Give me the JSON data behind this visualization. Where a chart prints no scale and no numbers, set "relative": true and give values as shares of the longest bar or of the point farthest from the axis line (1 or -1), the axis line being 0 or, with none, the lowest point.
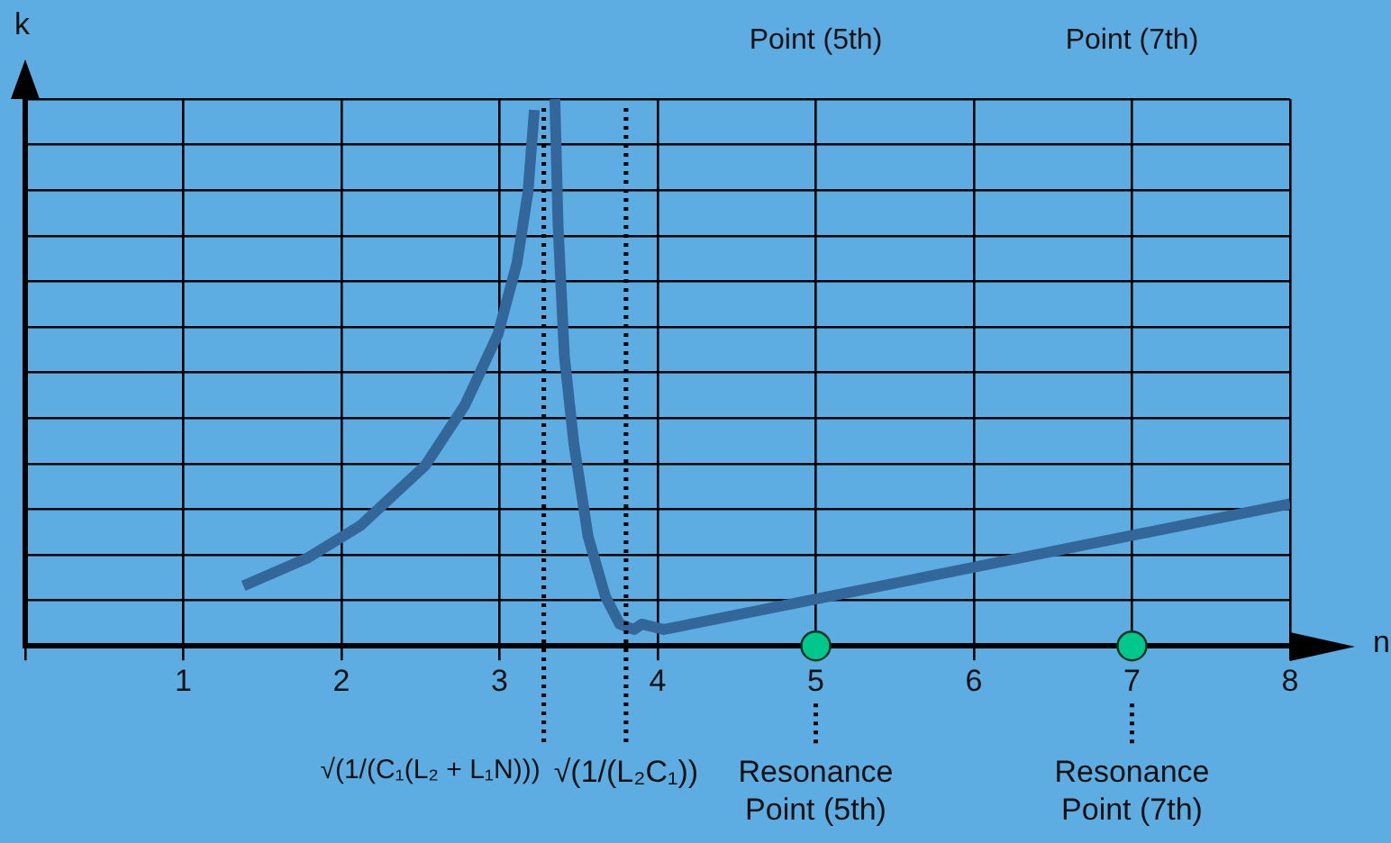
{
  "chart_data": {
    "type": "line",
    "relative": true,
    "xlabel": "n",
    "ylabel": "k",
    "xlim": [
      0,
      8
    ],
    "xticks": [
      {
        "value": 0,
        "label": null
      },
      1,
      2,
      3,
      4,
      5,
      6,
      7,
      8
    ],
    "grid": true,
    "legend": false,
    "marker": "none",
    "line_style": "solid",
    "series": [
      {
        "type": "line",
        "color": "#336699",
        "x": [
          1.38,
          1.78,
          2.12,
          2.53,
          2.78,
          2.99,
          3.11,
          3.18,
          3.22,
          3.28,
          3.35,
          3.37,
          3.41,
          3.47,
          3.56,
          3.67,
          3.76,
          3.85,
          3.9,
          4.04,
          8.0
        ],
        "values": [
          0.11,
          0.16,
          0.22,
          0.33,
          0.44,
          0.57,
          0.7,
          0.83,
          0.98,
          null,
          1.0,
          0.77,
          0.53,
          0.37,
          0.2,
          0.09,
          0.04,
          0.03,
          0.04,
          0.03,
          0.26
        ]
      },
      {
        "type": "scatter",
        "color": "#00c78c",
        "marker": "circle",
        "x": [
          5,
          7
        ],
        "values": [
          0,
          0
        ]
      }
    ],
    "ref_lines": [
      {
        "axis": "x",
        "value": 3.28,
        "label": "√(1/(C₁(L₂ + L₁N)))",
        "line_style": "dotted"
      },
      {
        "axis": "x",
        "value": 3.8,
        "label": "√(1/(L₂C₁))",
        "line_style": "dotted"
      },
      {
        "axis": "x",
        "value": 5,
        "label": "Resonance Point (5th)",
        "line_style": "dotted"
      },
      {
        "axis": "x",
        "value": 7,
        "label": "Resonance Point (7th)",
        "line_style": "dotted"
      }
    ],
    "annotations": [
      "Point (5th)",
      "Point (7th)"
    ]
  }
}
